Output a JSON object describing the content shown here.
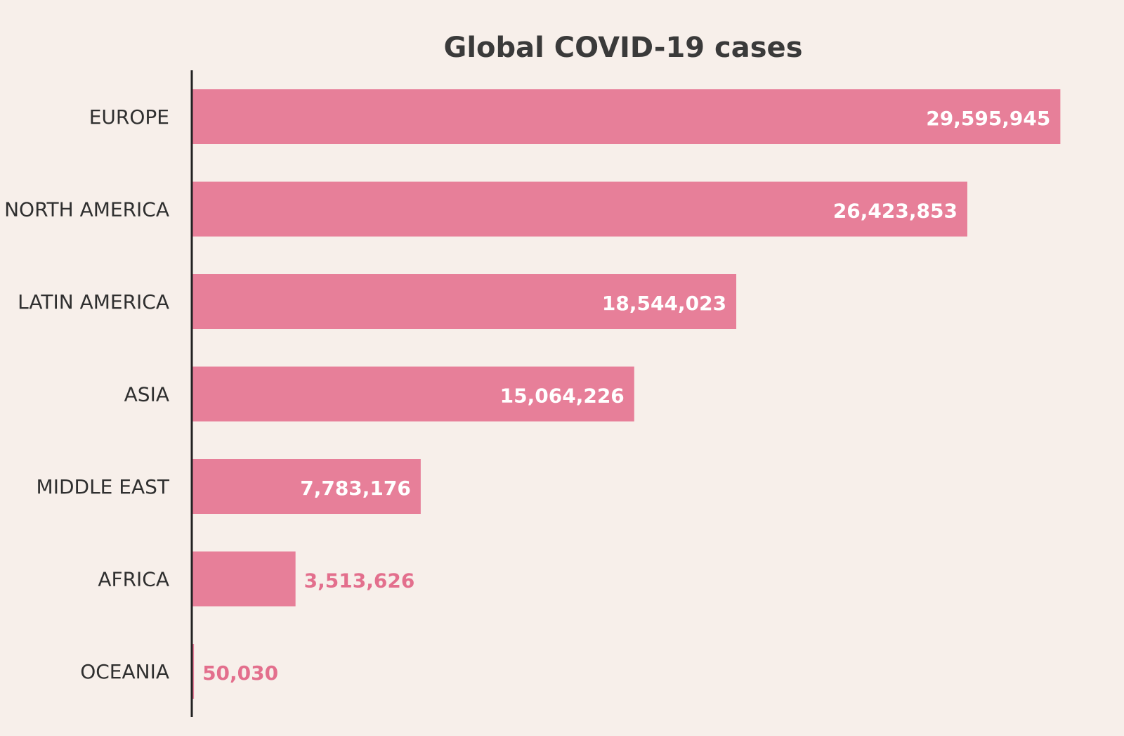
{
  "chart_data": {
    "type": "bar",
    "orientation": "horizontal",
    "title": "Global COVID-19 cases",
    "xlabel": "",
    "ylabel": "",
    "categories": [
      "EUROPE",
      "NORTH AMERICA",
      "LATIN AMERICA",
      "ASIA",
      "MIDDLE EAST",
      "AFRICA",
      "OCEANIA"
    ],
    "values": [
      29595945,
      26423853,
      18544023,
      15064226,
      7783176,
      3513626,
      50030
    ],
    "value_labels": [
      "29,595,945",
      "26,423,853",
      "18,544,023",
      "15,064,226",
      "7,783,176",
      "3,513,626",
      "50,030"
    ],
    "xlim": [
      0,
      31000000
    ],
    "grid": false,
    "legend": "none",
    "data_labels": "inside-end",
    "colors": {
      "background": "#f7efea",
      "bar": "#e77f99",
      "bar_label": "#ffffff",
      "outside_label": "#e36f8d",
      "axis_line": "#222222",
      "category_text": "#2f2f2f",
      "title_text": "#3a3a3a"
    }
  }
}
